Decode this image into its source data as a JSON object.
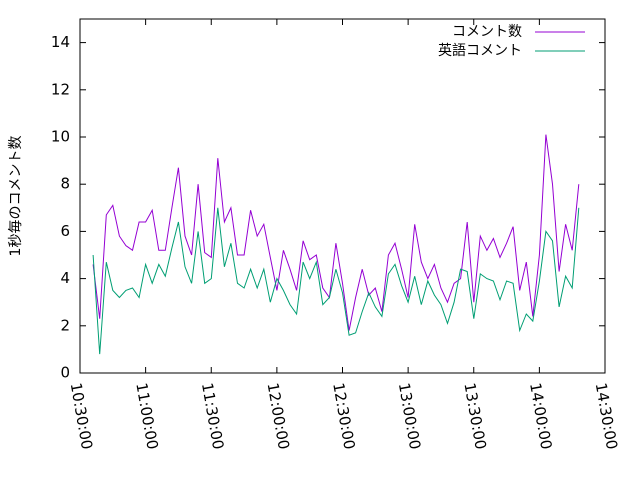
{
  "chart_data": {
    "type": "line",
    "ylabel": "1秒毎のコメント数",
    "x": [
      "10:36:00",
      "10:39:00",
      "10:42:00",
      "10:45:00",
      "10:48:00",
      "10:51:00",
      "10:54:00",
      "10:57:00",
      "11:00:00",
      "11:03:00",
      "11:06:00",
      "11:09:00",
      "11:12:00",
      "11:15:00",
      "11:18:00",
      "11:21:00",
      "11:24:00",
      "11:27:00",
      "11:30:00",
      "11:33:00",
      "11:36:00",
      "11:39:00",
      "11:42:00",
      "11:45:00",
      "11:48:00",
      "11:51:00",
      "11:54:00",
      "11:57:00",
      "12:00:00",
      "12:03:00",
      "12:06:00",
      "12:09:00",
      "12:12:00",
      "12:15:00",
      "12:18:00",
      "12:21:00",
      "12:24:00",
      "12:27:00",
      "12:30:00",
      "12:33:00",
      "12:36:00",
      "12:39:00",
      "12:42:00",
      "12:45:00",
      "12:48:00",
      "12:51:00",
      "12:54:00",
      "12:57:00",
      "13:00:00",
      "13:03:00",
      "13:06:00",
      "13:09:00",
      "13:12:00",
      "13:15:00",
      "13:18:00",
      "13:21:00",
      "13:24:00",
      "13:27:00",
      "13:30:00",
      "13:33:00",
      "13:36:00",
      "13:39:00",
      "13:42:00",
      "13:45:00",
      "13:48:00",
      "13:51:00",
      "13:54:00",
      "13:57:00",
      "14:00:00",
      "14:03:00",
      "14:06:00",
      "14:09:00",
      "14:12:00",
      "14:15:00",
      "14:18:00"
    ],
    "series": [
      {
        "name": "コメント数",
        "color": "#9400d3",
        "values": [
          4.6,
          2.3,
          6.7,
          7.1,
          5.8,
          5.4,
          5.2,
          6.4,
          6.4,
          6.9,
          5.2,
          5.2,
          7.0,
          8.7,
          5.8,
          5.0,
          8.0,
          5.1,
          4.9,
          9.1,
          6.4,
          7.0,
          5.0,
          5.0,
          6.9,
          5.8,
          6.3,
          4.9,
          3.5,
          5.2,
          4.4,
          3.5,
          5.6,
          4.8,
          5.0,
          3.6,
          3.2,
          5.5,
          3.8,
          1.8,
          3.2,
          4.4,
          3.3,
          3.6,
          2.6,
          5.0,
          5.5,
          4.4,
          3.2,
          6.3,
          4.7,
          4.0,
          4.6,
          3.6,
          3.0,
          3.8,
          4.0,
          6.4,
          3.0,
          5.8,
          5.2,
          5.7,
          4.9,
          5.5,
          6.2,
          3.5,
          4.7,
          2.4,
          5.0,
          10.1,
          8.0,
          4.3,
          6.3,
          5.2,
          8.0
        ]
      },
      {
        "name": "英語コメント",
        "color": "#009e73",
        "values": [
          5.0,
          0.8,
          4.7,
          3.5,
          3.2,
          3.5,
          3.6,
          3.2,
          4.6,
          3.8,
          4.6,
          4.1,
          5.3,
          6.4,
          4.5,
          3.8,
          6.0,
          3.8,
          4.0,
          7.0,
          4.5,
          5.5,
          3.8,
          3.6,
          4.4,
          3.6,
          4.4,
          3.0,
          4.0,
          3.5,
          2.9,
          2.5,
          4.7,
          4.0,
          4.7,
          2.9,
          3.2,
          4.4,
          3.4,
          1.6,
          1.7,
          2.6,
          3.4,
          2.8,
          2.4,
          4.2,
          4.6,
          3.7,
          3.0,
          4.1,
          2.9,
          3.9,
          3.3,
          2.9,
          2.1,
          3.0,
          4.4,
          4.3,
          2.3,
          4.2,
          4.0,
          3.9,
          3.1,
          3.9,
          3.8,
          1.8,
          2.5,
          2.2,
          3.9,
          6.0,
          5.6,
          2.8,
          4.1,
          3.6,
          7.0
        ]
      }
    ],
    "xlim": [
      "10:30:00",
      "14:30:00"
    ],
    "xticks": [
      "10:30:00",
      "11:00:00",
      "11:30:00",
      "12:00:00",
      "12:30:00",
      "13:00:00",
      "13:30:00",
      "14:00:00",
      "14:30:00"
    ],
    "ylim": [
      0,
      15
    ],
    "yticks": [
      0,
      2,
      4,
      6,
      8,
      10,
      12,
      14
    ],
    "legend": "top-right"
  }
}
